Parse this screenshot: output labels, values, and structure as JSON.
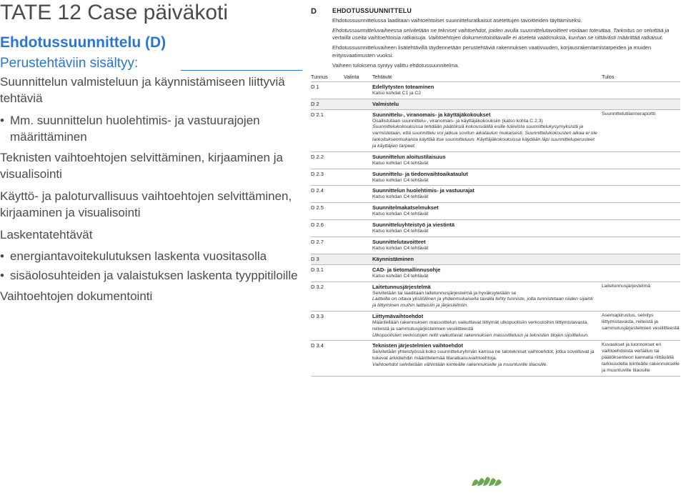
{
  "left": {
    "title_prefix": "TATE 12",
    "title_suffix": "Case päiväkoti",
    "subtitle": "Ehdotussuunnittelu (D)",
    "subheading": "Perustehtäviin sisältyy:",
    "para1": "Suunnittelun valmisteluun ja käynnistämiseen liittyviä tehtäviä",
    "bullet_mm": "Mm. suunnittelun huolehtimis- ja vastuurajojen määrittäminen",
    "para2": "Teknisten vaihtoehtojen selvittäminen, kirjaaminen ja visualisointi",
    "para3": "Käyttö- ja paloturvallisuus vaihtoehtojen selvittäminen, kirjaaminen ja visualisointi",
    "para4": "Laskentatehtävät",
    "bullet_e1": "energiantavoitekulutuksen laskenta vuositasolla",
    "bullet_e2": "sisäolosuhteiden ja valaistuksen laskenta tyyppitiloille",
    "para5": "Vaihtoehtojen dokumentointi"
  },
  "right": {
    "heading_letter": "D",
    "heading_text": "EHDOTUSSUUNNITTELU",
    "intro1": "Ehdotussuunnittelussa laaditaan vaihtoehtoiset suunnitteluratkaisut asetettujen tavoitteiden täyttämiseksi.",
    "intro2": "Ehdotussuunnitteluvaiheessa selvitetään ne tekniset vaihtoehdot, joiden avulla suunnittelutavoitteet voidaan toteuttaa. Tarkoitus on selvittää ja vertailla useita vaihtoehtoisia ratkaisuja. Vaihtoehtojen dokumentointitavalle ei aseteta vaatimuksia, kunhan se riittävästi määrittää ratkaisut.",
    "intro3": "Ehdotussuunnitteluvaiheen lisätehtävillä täydennetään perustehtäviä rakennuksen vaativuuden, korjausrakentamistarpeiden ja muiden erityisvaatimusten vuoksi.",
    "intro4": "Vaiheen tuloksena syntyy valittu ehdotussuunnitelma.",
    "head_tunnus": "Tunnus",
    "head_valinta": "Valinta",
    "head_tehtavat": "Tehtävät",
    "head_tulos": "Tulos",
    "rows": [
      {
        "t": "D 1",
        "shade": false,
        "label": "Edellytysten toteaminen",
        "desc": "Katso kohdat C1 ja C2",
        "result": ""
      },
      {
        "t": "D 2",
        "shade": true,
        "label": "Valmistelu",
        "desc": "",
        "result": ""
      },
      {
        "t": "D 2.1",
        "shade": false,
        "label": "Suunnittelu-, viranomais- ja käyttäjäkokoukset",
        "desc": "Osallistutaan suunnittelu-, viranomais- ja käyttäjäkokouksiin (katso kohta C 2.3)\nSuunnittelukokouksissa tehdään päätöksiä kokousvälillä esille tulevista suunnittelukysymyksistä ja varmistetaan, että suunnittelu voi jatkua sovitun aikataulun mukaisesti. Suunnittelukokousten aikaa ei ole tarkoituksenmukaista käyttää itse suunnitteluun. Käyttäjäkokouksissa käydään läpi suunnitteluperusteet ja käyttäjien tarpeet.",
        "result": "Suunnittelutilanneraportti"
      },
      {
        "t": "D 2.2",
        "shade": false,
        "label": "Suunnittelun aloitustilaisuus",
        "desc": "Katso kohdan C4 tehtävät",
        "result": ""
      },
      {
        "t": "D 2.3",
        "shade": false,
        "label": "Suunnittelu- ja tiedonvaihtoaikataulut",
        "desc": "Katso kohdan C4 tehtävät",
        "result": ""
      },
      {
        "t": "D 2.4",
        "shade": false,
        "label": "Suunnittelun huolehtimis- ja vastuurajat",
        "desc": "Katso kohdan C4 tehtävät",
        "result": ""
      },
      {
        "t": "D 2.5",
        "shade": false,
        "label": "Suunnitelmakatselmukset",
        "desc": "Katso kohdan C4 tehtävät",
        "result": ""
      },
      {
        "t": "D 2.6",
        "shade": false,
        "label": "Suunnitteluyhteistyö ja viestintä",
        "desc": "Katso kohdan C4 tehtävät",
        "result": ""
      },
      {
        "t": "D 2.7",
        "shade": false,
        "label": "Suunnittelutavoitteet",
        "desc": "Katso kohdan C4 tehtävät",
        "result": ""
      },
      {
        "t": "D 3",
        "shade": true,
        "label": "Käynnistäminen",
        "desc": "",
        "result": ""
      },
      {
        "t": "D 3.1",
        "shade": false,
        "label": "CAD- ja tietomallinnusohje",
        "desc": "Katso kohdan C4 tehtävät",
        "result": ""
      },
      {
        "t": "D 3.2",
        "shade": false,
        "label": "Laitetunnusjärjestelmä",
        "desc": "Selvitetään tai laaditaan laitetunnusjärjestelmä ja hyväksytetään se\nLaitteilla on oltava yksilöllinen ja yhdenmukaisella tavalla tehty tunniste, jolta tunnistetaan niiden sijainti ja liittyminen muihin laitteisiin ja järjestelmiin.",
        "result": "Laitetunnusjärjestelmä"
      },
      {
        "t": "D 3.3",
        "shade": false,
        "label": "Liittymävaihtoehdot",
        "desc": "Määritellään rakennuksen massoittelun vaikuttavat liittymät ulkopuolisiin verkostoihin liittymistavasta, reiteistä ja sammutusjärjestelmien vesiliitteestä\nUlkopuolisten verkostojen reitit vaikuttavat rakennuksen massoitteluun ja teknisten tilojen sijoitteluun.",
        "result": "Asemapiirustus, selvitys liittymistavasta, reiteistä ja sammutusjärjestelmien vesiliitteestä"
      },
      {
        "t": "D 3.4",
        "shade": false,
        "label": "Teknisten järjestelmien vaihtoehdot",
        "desc": "Selvitetään yhteistyössä koko suunnitteluryhmän kanssa ne talotekniset vaihtoehdot, jotka soveltuvat ja tukevat arkkitehdin määrittelemää tilaratkaisuvaihtoehtoja.\nVaihtoehdot selvitetään vähintään kiinteälle rakennukselle ja muuntuville tilaosille.",
        "result": "Kuvaukset ja luonnokset eri vaihtoehdoista vertailun tai päätöksenteon kannalta riittävällä tarkkuudella kiinteälle rakennukselle ja muuntuville tilaosille"
      }
    ]
  },
  "colors": {
    "accent_blue": "#2a75d0",
    "text_gray": "#4a4a4a",
    "shade_bg": "#eeeeee",
    "divider": "#bbbbbb",
    "logo_green": "#6aa84f"
  }
}
